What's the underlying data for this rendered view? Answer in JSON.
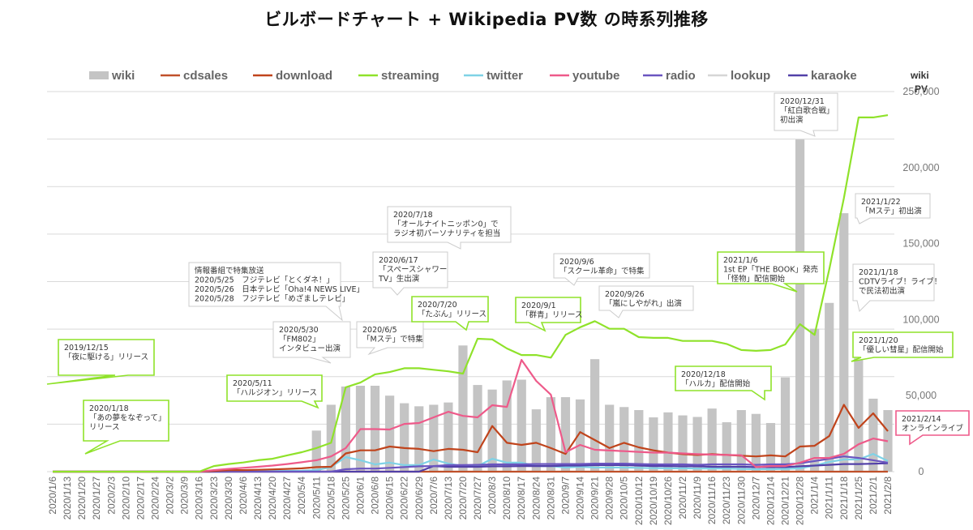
{
  "title": "ビルボードチャート + Wikipedia PV数 の時系列推移",
  "chart_data": {
    "type": "bar+line",
    "title": "ビルボードチャート + Wikipedia PV数 の時系列推移",
    "xlabel": "",
    "ylabel": "wiki PV",
    "ylim": [
      0,
      250000
    ],
    "yticks": [
      0,
      50000,
      100000,
      150000,
      200000,
      250000
    ],
    "ytick_labels": [
      "0",
      "50,000",
      "100,000",
      "150,000",
      "200,000",
      "250,000"
    ],
    "grid": true,
    "legend_position": "top",
    "categories": [
      "2020/1/6",
      "2020/1/13",
      "2020/1/20",
      "2020/1/27",
      "2020/2/3",
      "2020/2/10",
      "2020/2/17",
      "2020/2/24",
      "2020/3/2",
      "2020/3/9",
      "2020/3/16",
      "2020/3/23",
      "2020/3/30",
      "2020/4/6",
      "2020/4/13",
      "2020/4/20",
      "2020/4/27",
      "2020/5/4",
      "2020/5/11",
      "2020/5/18",
      "2020/5/25",
      "2020/6/1",
      "2020/6/8",
      "2020/6/15",
      "2020/6/22",
      "2020/6/29",
      "2020/7/6",
      "2020/7/13",
      "2020/7/20",
      "2020/7/27",
      "2020/8/3",
      "2020/8/10",
      "2020/8/17",
      "2020/8/24",
      "2020/8/31",
      "2020/9/7",
      "2020/9/14",
      "2020/9/21",
      "2020/9/28",
      "2020/10/5",
      "2020/10/12",
      "2020/10/19",
      "2020/10/26",
      "2020/11/2",
      "2020/11/9",
      "2020/11/16",
      "2020/11/23",
      "2020/11/30",
      "2020/12/7",
      "2020/12/14",
      "2020/12/21",
      "2020/12/28",
      "2021/1/4",
      "2021/1/11",
      "2021/1/18",
      "2021/1/25",
      "2021/2/1",
      "2021/2/8"
    ],
    "series": [
      {
        "name": "wiki",
        "kind": "bar",
        "color": "#c4c4c4",
        "values": [
          0,
          0,
          0,
          0,
          0,
          0,
          0,
          0,
          0,
          0,
          0,
          0,
          0,
          0,
          0,
          0,
          0,
          0,
          27000,
          44000,
          56000,
          56500,
          56500,
          50000,
          45000,
          43000,
          44000,
          45500,
          83000,
          57000,
          54000,
          60000,
          60500,
          41000,
          49000,
          49000,
          47500,
          74000,
          44000,
          42500,
          40500,
          35700,
          39000,
          37000,
          36000,
          41500,
          32500,
          40500,
          38000,
          32000,
          62000,
          218500,
          94000,
          111000,
          170000,
          74600,
          48000,
          40500
        ]
      },
      {
        "name": "cdsales",
        "kind": "line",
        "color": "#c0502a",
        "values": [
          0,
          0,
          0,
          0,
          0,
          0,
          0,
          0,
          0,
          0,
          0,
          0,
          0,
          0,
          0,
          0,
          0,
          0,
          0,
          0,
          0,
          0,
          0,
          0,
          0,
          0,
          0,
          0,
          0,
          0,
          0,
          0,
          0,
          0,
          0,
          0,
          0,
          0,
          0,
          0,
          0,
          0,
          0,
          0,
          0,
          0,
          0,
          0,
          0,
          0,
          0,
          0,
          0,
          0,
          0,
          0,
          0,
          0
        ]
      },
      {
        "name": "download",
        "kind": "line",
        "color": "#c0441c",
        "values": [
          0,
          0,
          0,
          0,
          0,
          0,
          0,
          0,
          0,
          0,
          0,
          500,
          1000,
          1000,
          1200,
          1500,
          1800,
          2200,
          3000,
          3200,
          12000,
          14000,
          14000,
          16500,
          15500,
          15000,
          13500,
          15000,
          14400,
          12800,
          30000,
          19000,
          17600,
          19000,
          15500,
          11700,
          26000,
          20800,
          15500,
          19000,
          16000,
          14000,
          12500,
          11500,
          11000,
          11500,
          11000,
          10500,
          10000,
          10700,
          10000,
          16500,
          17000,
          23400,
          44000,
          28800,
          38400,
          26600
        ]
      },
      {
        "name": "streaming",
        "kind": "line",
        "color": "#8fe22a",
        "values": [
          0,
          0,
          0,
          0,
          0,
          0,
          0,
          0,
          0,
          0,
          0,
          3700,
          5000,
          6000,
          7500,
          8500,
          10700,
          12800,
          15500,
          19000,
          55500,
          58600,
          64000,
          65500,
          68000,
          68000,
          67000,
          66000,
          64500,
          87400,
          87000,
          81000,
          76700,
          76700,
          75000,
          90000,
          95000,
          99000,
          94000,
          94000,
          88500,
          88000,
          88000,
          86000,
          86000,
          86000,
          84000,
          80000,
          79500,
          80000,
          83700,
          97000,
          90000,
          133000,
          180000,
          233000,
          233000,
          234500
        ]
      },
      {
        "name": "twitter",
        "kind": "line",
        "color": "#7fd2e6",
        "values": [
          0,
          0,
          0,
          0,
          0,
          0,
          0,
          0,
          0,
          0,
          0,
          0,
          0,
          200,
          300,
          400,
          500,
          600,
          1000,
          3000,
          9600,
          7500,
          4800,
          5900,
          4300,
          4300,
          8000,
          5300,
          3700,
          3700,
          8500,
          5900,
          5900,
          3700,
          3700,
          2700,
          3200,
          2700,
          2700,
          2700,
          2500,
          2300,
          2200,
          2200,
          2000,
          2100,
          2000,
          1800,
          1600,
          1600,
          1800,
          2200,
          4000,
          6400,
          8000,
          8000,
          11700,
          7000
        ]
      },
      {
        "name": "youtube",
        "kind": "line",
        "color": "#ee5a8a",
        "values": [
          0,
          0,
          0,
          0,
          0,
          0,
          0,
          0,
          0,
          0,
          0,
          1000,
          1800,
          2500,
          3200,
          4000,
          5000,
          6200,
          7500,
          10000,
          15500,
          28000,
          28000,
          27700,
          31400,
          32000,
          35700,
          39400,
          36700,
          35700,
          43700,
          42600,
          73500,
          59700,
          50600,
          12800,
          17600,
          14400,
          13900,
          13500,
          13000,
          12500,
          12500,
          12000,
          11500,
          11200,
          11000,
          10800,
          3000,
          3700,
          3700,
          5900,
          9000,
          9000,
          11700,
          18000,
          21800,
          20000
        ]
      },
      {
        "name": "radio",
        "kind": "line",
        "color": "#6a55c0",
        "values": [
          0,
          0,
          0,
          0,
          0,
          0,
          0,
          0,
          0,
          0,
          0,
          0,
          0,
          0,
          0,
          0,
          0,
          0,
          0,
          0,
          1600,
          2000,
          2000,
          2500,
          3000,
          3500,
          3700,
          4300,
          4300,
          4500,
          4800,
          4800,
          4800,
          5000,
          5000,
          5000,
          5000,
          5300,
          5300,
          5300,
          5000,
          4800,
          4800,
          4800,
          4500,
          4800,
          4800,
          4800,
          4500,
          4800,
          4800,
          5500,
          7000,
          8500,
          10000,
          9000,
          7500,
          5900
        ]
      },
      {
        "name": "lookup",
        "kind": "line",
        "color": "#d6d6d6",
        "values": [
          0,
          0,
          0,
          0,
          0,
          0,
          0,
          0,
          0,
          0,
          0,
          0,
          0,
          0,
          0,
          0,
          0,
          0,
          0,
          0,
          0,
          0,
          0,
          0,
          0,
          0,
          0,
          0,
          0,
          0,
          0,
          0,
          0,
          0,
          0,
          0,
          0,
          0,
          0,
          0,
          0,
          0,
          0,
          0,
          0,
          0,
          0,
          0,
          0,
          0,
          0,
          0,
          0,
          0,
          0,
          0,
          0,
          0
        ]
      },
      {
        "name": "karaoke",
        "kind": "line",
        "color": "#5240a8",
        "values": [
          0,
          0,
          0,
          0,
          0,
          0,
          0,
          0,
          0,
          0,
          0,
          0,
          0,
          0,
          0,
          0,
          0,
          0,
          0,
          0,
          0,
          0,
          0,
          0,
          0,
          0,
          3700,
          3200,
          3200,
          3200,
          3500,
          3500,
          3700,
          3700,
          3700,
          4000,
          4000,
          4300,
          4300,
          4300,
          4000,
          3700,
          3700,
          3500,
          3500,
          3200,
          3200,
          3200,
          3000,
          3000,
          3000,
          3500,
          4000,
          4500,
          5000,
          5000,
          5200,
          5500
        ]
      }
    ],
    "annotations": [
      {
        "lines": [
          "2019/12/15",
          "「夜に駆ける」リリース"
        ],
        "border": "#8fe22a"
      },
      {
        "lines": [
          "2020/1/18",
          "「あの夢をなぞって」",
          "リリース"
        ],
        "border": "#8fe22a"
      },
      {
        "lines": [
          "2020/5/11",
          "「ハルジオン」リリース"
        ],
        "border": "#8fe22a"
      },
      {
        "lines": [
          "情報番組で特集放送",
          "2020/5/25　フジテレビ「とくダネ！」",
          "2020/5/26　日本テレビ「Oha!4 NEWS LIVE」",
          "2020/5/28　フジテレビ「めざましテレビ」"
        ],
        "border": "#cccccc"
      },
      {
        "lines": [
          "2020/5/30",
          "「FM802」",
          "インタビュー出演"
        ],
        "border": "#cccccc"
      },
      {
        "lines": [
          "2020/6/5",
          "「Mステ」で特集"
        ],
        "border": "#cccccc"
      },
      {
        "lines": [
          "2020/6/17",
          "「スペースシャワー",
          "TV」生出演"
        ],
        "border": "#cccccc"
      },
      {
        "lines": [
          "2020/7/18",
          "「オールナイトニッポン0」で",
          "ラジオ初パーソナリティを担当"
        ],
        "border": "#cccccc"
      },
      {
        "lines": [
          "2020/7/20",
          "「たぶん」リリース"
        ],
        "border": "#8fe22a"
      },
      {
        "lines": [
          "2020/9/1",
          "「群青」リリース"
        ],
        "border": "#8fe22a"
      },
      {
        "lines": [
          "2020/9/6",
          "「スクール革命」で特集"
        ],
        "border": "#cccccc"
      },
      {
        "lines": [
          "2020/9/26",
          "「嵐にしやがれ」出演"
        ],
        "border": "#cccccc"
      },
      {
        "lines": [
          "2020/12/18",
          "「ハルカ」配信開始"
        ],
        "border": "#8fe22a"
      },
      {
        "lines": [
          "2020/12/31",
          "「紅白歌合戦」",
          "初出演"
        ],
        "border": "#cccccc"
      },
      {
        "lines": [
          "2021/1/6",
          "1st EP「THE BOOK」発売",
          "「怪物」配信開始"
        ],
        "border": "#8fe22a"
      },
      {
        "lines": [
          "2021/1/22",
          "「Mステ」初出演"
        ],
        "border": "#cccccc"
      },
      {
        "lines": [
          "2021/1/18",
          "CDTVライブ！ライブ！",
          "で民法初出演"
        ],
        "border": "#cccccc"
      },
      {
        "lines": [
          "2021/1/20",
          "「優しい彗星」配信開始"
        ],
        "border": "#8fe22a"
      },
      {
        "lines": [
          "2021/2/14",
          "オンラインライブ"
        ],
        "border": "#ee5a8a"
      }
    ]
  }
}
